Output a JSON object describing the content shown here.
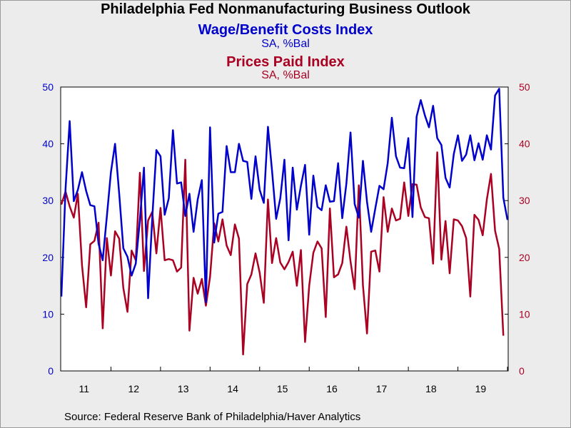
{
  "header": {
    "title": "Philadelphia Fed Nonmanufacturing Business Outlook",
    "series1_title": "Wage/Benefit Costs Index",
    "series1_subtitle": "SA, %Bal",
    "series2_title": "Prices Paid Index",
    "series2_subtitle": "SA, %Bal"
  },
  "footer": {
    "source": "Source:  Federal Reserve Bank of Philadelphia/Haver Analytics"
  },
  "colors": {
    "background": "#ececec",
    "plot_background": "#ffffff",
    "series1": "#0000cc",
    "series2": "#aa0022"
  },
  "chart_data": {
    "type": "line",
    "x_start": "2011-01",
    "x_frequency": "monthly",
    "x_tick_labels": [
      "11",
      "12",
      "13",
      "14",
      "15",
      "16",
      "17",
      "18",
      "19"
    ],
    "ylim_left": [
      0,
      50
    ],
    "ylim_right": [
      0,
      50
    ],
    "y_ticks_left": [
      0,
      10,
      20,
      30,
      40,
      50
    ],
    "y_ticks_right": [
      0,
      10,
      20,
      30,
      40,
      50
    ],
    "grid": false,
    "legend": "none",
    "series": [
      {
        "name": "Wage/Benefit Costs Index",
        "axis": "left",
        "values": [
          13.1,
          32.0,
          44.0,
          29.9,
          31.9,
          35.0,
          31.7,
          29.2,
          29.0,
          22.4,
          19.5,
          27.2,
          35.0,
          40.0,
          31.2,
          21.6,
          20.1,
          16.8,
          18.9,
          26.6,
          35.8,
          12.8,
          26.9,
          38.9,
          37.8,
          27.5,
          30.4,
          42.4,
          33.0,
          33.2,
          27.3,
          31.2,
          24.5,
          30.2,
          33.6,
          12.1,
          42.9,
          22.6,
          27.7,
          28.0,
          39.6,
          35.0,
          35.0,
          40.0,
          37.0,
          36.8,
          30.3,
          37.8,
          31.9,
          29.6,
          43.0,
          35.3,
          26.8,
          30.4,
          37.2,
          23.0,
          35.8,
          28.4,
          32.6,
          36.3,
          24.0,
          34.4,
          28.9,
          28.3,
          32.7,
          29.8,
          29.9,
          36.6,
          26.9,
          33.0,
          42.0,
          29.4,
          27.0,
          37.0,
          29.8,
          24.5,
          28.6,
          32.6,
          32.0,
          36.6,
          44.6,
          37.8,
          35.8,
          35.7,
          41.0,
          27.1,
          44.8,
          47.7,
          45.0,
          42.9,
          46.7,
          41.0,
          39.8,
          34.0,
          32.3,
          38.2,
          41.5,
          37.0,
          38.1,
          41.5,
          37.1,
          40.1,
          37.2,
          41.5,
          39.0,
          48.5,
          49.7,
          30.5,
          26.6
        ]
      },
      {
        "name": "Prices Paid Index",
        "axis": "right",
        "values": [
          29.3,
          31.6,
          29.0,
          27.0,
          31.2,
          18.6,
          11.2,
          22.3,
          22.9,
          26.1,
          7.5,
          23.4,
          16.8,
          24.6,
          23.3,
          14.6,
          10.4,
          21.2,
          19.5,
          34.9,
          17.6,
          26.5,
          28.0,
          20.7,
          28.7,
          19.5,
          19.7,
          19.5,
          17.5,
          18.2,
          37.2,
          7.1,
          16.4,
          13.6,
          16.2,
          11.5,
          16.6,
          26.0,
          22.8,
          26.7,
          22.1,
          20.4,
          25.8,
          23.3,
          2.9,
          15.3,
          17.0,
          20.7,
          17.3,
          12.0,
          30.2,
          19.0,
          23.4,
          19.1,
          17.9,
          19.2,
          21.0,
          15.0,
          21.3,
          5.1,
          15.0,
          20.8,
          22.8,
          21.6,
          9.5,
          28.6,
          16.5,
          17.0,
          19.0,
          25.4,
          19.3,
          14.4,
          32.7,
          15.1,
          6.6,
          21.0,
          21.2,
          17.5,
          30.6,
          24.5,
          28.6,
          26.5,
          26.8,
          33.2,
          27.3,
          32.9,
          32.8,
          28.8,
          27.1,
          26.9,
          18.9,
          38.5,
          19.6,
          26.4,
          17.2,
          26.7,
          26.5,
          25.5,
          23.4,
          13.1,
          27.5,
          26.6,
          23.9,
          30.2,
          34.7,
          24.7,
          21.5,
          6.2
        ]
      }
    ]
  }
}
